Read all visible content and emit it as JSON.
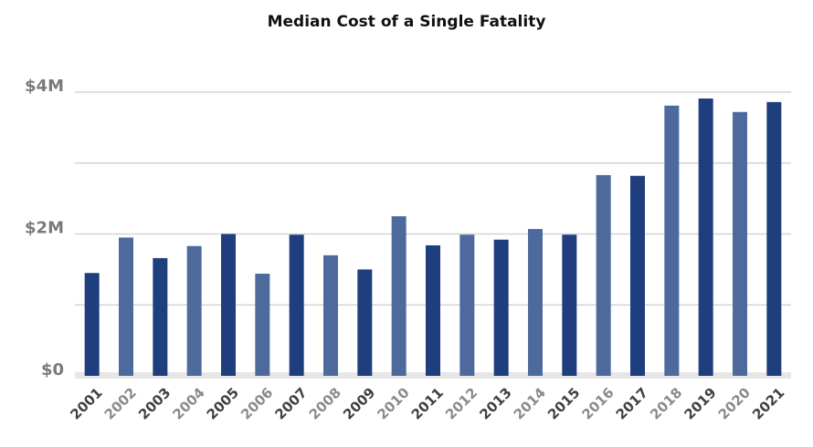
{
  "chart_data": {
    "type": "bar",
    "title": "Median Cost of a Single Fatality",
    "categories": [
      "2001",
      "2002",
      "2003",
      "2004",
      "2005",
      "2006",
      "2007",
      "2008",
      "2009",
      "2010",
      "2011",
      "2012",
      "2013",
      "2014",
      "2015",
      "2016",
      "2017",
      "2018",
      "2019",
      "2020",
      "2021"
    ],
    "values": [
      1450000,
      1950000,
      1660000,
      1830000,
      2000000,
      1440000,
      1990000,
      1700000,
      1500000,
      2250000,
      1840000,
      1990000,
      1920000,
      2070000,
      1990000,
      2830000,
      2820000,
      3810000,
      3910000,
      3720000,
      3860000
    ],
    "colors": [
      "#1f3e7e",
      "#4e6a9d",
      "#1f3e7e",
      "#4e6a9d",
      "#1f3e7e",
      "#4e6a9d",
      "#1f3e7e",
      "#4e6a9d",
      "#1f3e7e",
      "#4e6a9d",
      "#1f3e7e",
      "#4e6a9d",
      "#1f3e7e",
      "#4e6a9d",
      "#1f3e7e",
      "#4e6a9d",
      "#1f3e7e",
      "#4e6a9d",
      "#1f3e7e",
      "#4e6a9d",
      "#1f3e7e"
    ],
    "category_label_colors": [
      "#3f3f3f",
      "#8a8a8a",
      "#3f3f3f",
      "#8a8a8a",
      "#3f3f3f",
      "#8a8a8a",
      "#3f3f3f",
      "#8a8a8a",
      "#3f3f3f",
      "#8a8a8a",
      "#3f3f3f",
      "#8a8a8a",
      "#3f3f3f",
      "#8a8a8a",
      "#3f3f3f",
      "#8a8a8a",
      "#3f3f3f",
      "#8a8a8a",
      "#3f3f3f",
      "#8a8a8a",
      "#3f3f3f"
    ],
    "ylim": [
      0,
      4000000
    ],
    "yticks": [
      {
        "value": 0,
        "label": "$0"
      },
      {
        "value": 2000000,
        "label": "$2M"
      },
      {
        "value": 4000000,
        "label": "$4M"
      }
    ],
    "ygrid": [
      1000000,
      2000000,
      3000000,
      4000000
    ],
    "grid": true
  }
}
